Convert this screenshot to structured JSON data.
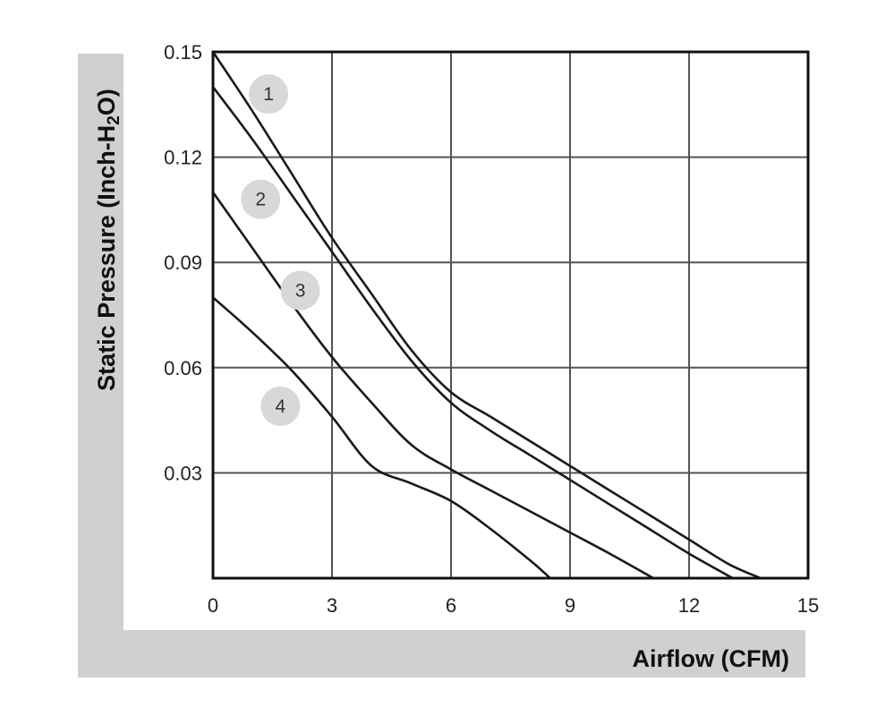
{
  "chart_data": {
    "type": "line",
    "xlabel": "Airflow (CFM)",
    "ylabel": {
      "prefix": "Static Pressure (Inch-H",
      "subscript": "2",
      "suffix": "O)"
    },
    "xlim": [
      0,
      15
    ],
    "ylim": [
      0,
      0.15
    ],
    "x_ticks": [
      "0",
      "3",
      "6",
      "9",
      "12",
      "15"
    ],
    "y_ticks": [
      "0.15",
      "0.12",
      "0.09",
      "0.06",
      "0.03"
    ],
    "grid": true,
    "series": [
      {
        "name": "1",
        "points": [
          [
            0,
            0.15
          ],
          [
            1,
            0.133
          ],
          [
            2,
            0.115
          ],
          [
            3,
            0.097
          ],
          [
            4,
            0.081
          ],
          [
            5,
            0.065
          ],
          [
            6,
            0.053
          ],
          [
            7,
            0.046
          ],
          [
            8,
            0.039
          ],
          [
            9,
            0.032
          ],
          [
            10,
            0.025
          ],
          [
            11,
            0.018
          ],
          [
            12,
            0.011
          ],
          [
            13,
            0.004
          ],
          [
            13.8,
            0.0
          ]
        ]
      },
      {
        "name": "2",
        "points": [
          [
            0,
            0.14
          ],
          [
            1,
            0.125
          ],
          [
            2,
            0.109
          ],
          [
            3,
            0.093
          ],
          [
            4,
            0.077
          ],
          [
            5,
            0.062
          ],
          [
            6,
            0.05
          ],
          [
            7,
            0.042
          ],
          [
            8,
            0.035
          ],
          [
            9,
            0.028
          ],
          [
            10,
            0.021
          ],
          [
            11,
            0.014
          ],
          [
            12,
            0.007
          ],
          [
            13.1,
            0.0
          ]
        ]
      },
      {
        "name": "3",
        "points": [
          [
            0,
            0.11
          ],
          [
            1,
            0.094
          ],
          [
            2,
            0.078
          ],
          [
            3,
            0.063
          ],
          [
            4,
            0.05
          ],
          [
            5,
            0.038
          ],
          [
            6,
            0.031
          ],
          [
            7,
            0.025
          ],
          [
            8,
            0.019
          ],
          [
            9,
            0.013
          ],
          [
            10,
            0.007
          ],
          [
            11.1,
            0.0
          ]
        ]
      },
      {
        "name": "4",
        "points": [
          [
            0,
            0.08
          ],
          [
            1,
            0.07
          ],
          [
            2,
            0.059
          ],
          [
            3,
            0.046
          ],
          [
            4,
            0.032
          ],
          [
            5,
            0.027
          ],
          [
            6,
            0.022
          ],
          [
            7,
            0.014
          ],
          [
            8,
            0.005
          ],
          [
            8.5,
            0.0
          ]
        ]
      }
    ],
    "labels": [
      {
        "text": "1",
        "x": 1.4,
        "y": 0.138
      },
      {
        "text": "2",
        "x": 1.2,
        "y": 0.108
      },
      {
        "text": "3",
        "x": 2.2,
        "y": 0.082
      },
      {
        "text": "4",
        "x": 1.7,
        "y": 0.049
      }
    ],
    "colors": {
      "line": "#1a1a1a",
      "grid": "#555555",
      "frame": "#111111",
      "badge_fill": "#d8d8d8",
      "gutter": "#d0d0d0"
    }
  }
}
